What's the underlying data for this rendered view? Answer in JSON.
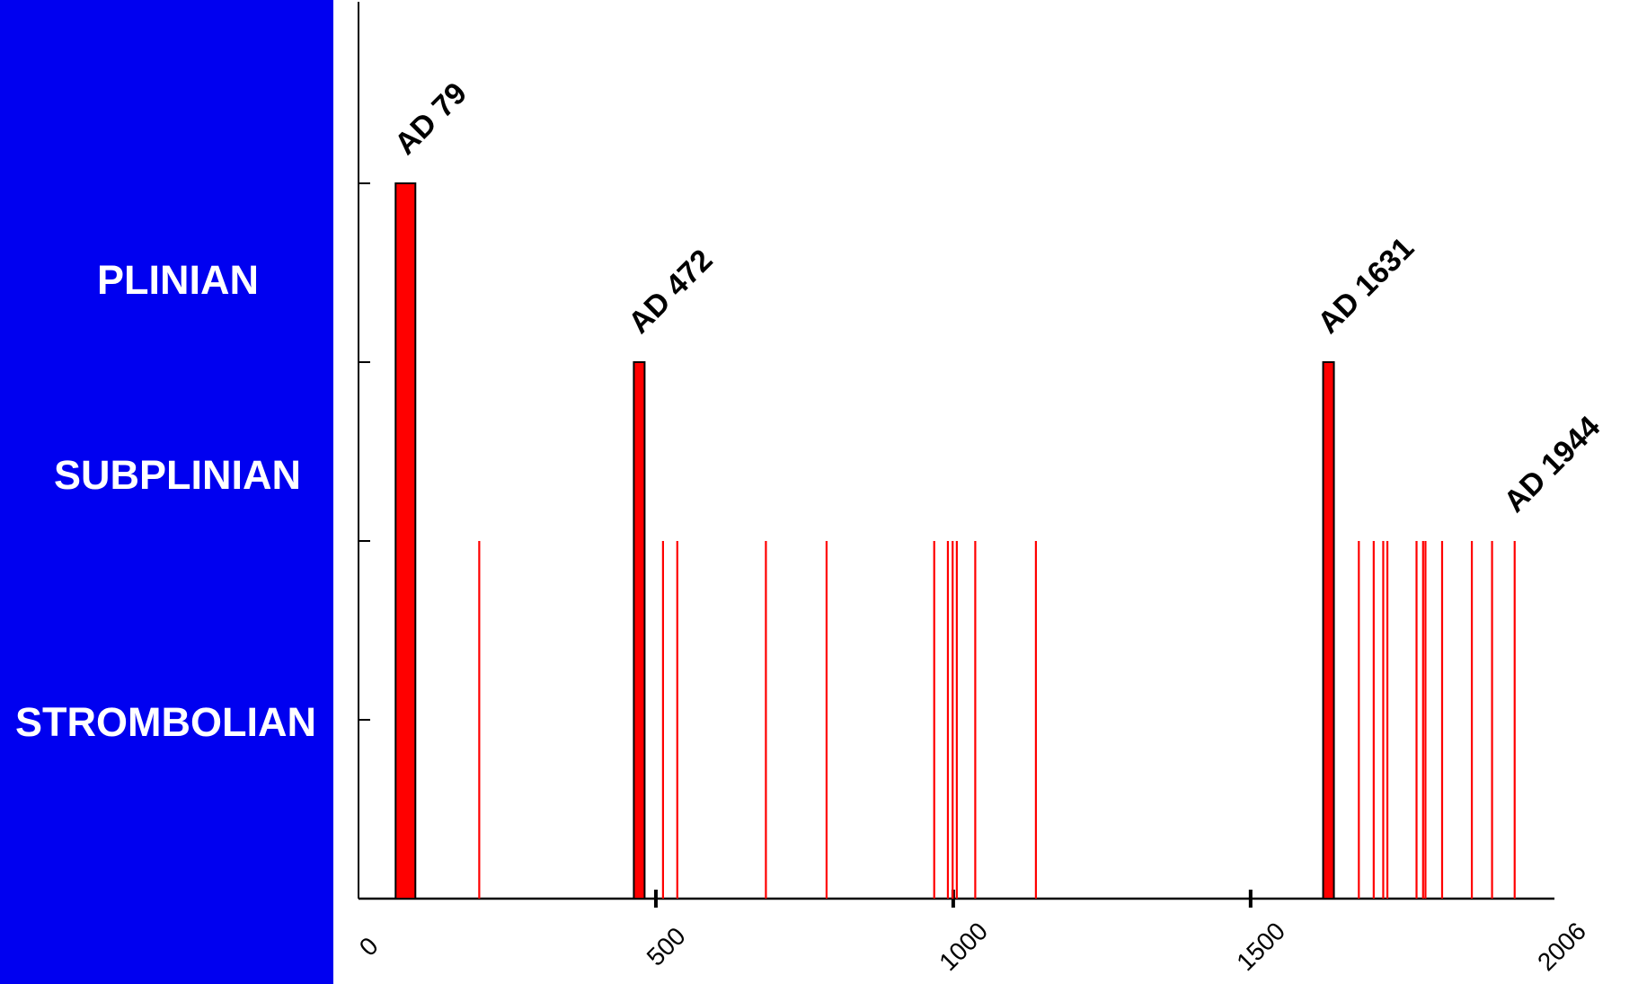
{
  "chart_data": {
    "type": "bar",
    "categories": [
      "STROMBOLIAN",
      "SUBPLINIAN",
      "PLINIAN"
    ],
    "x_ticks": [
      "0",
      "500",
      "1000",
      "1500",
      "2006"
    ],
    "xlim": [
      0,
      2006
    ],
    "annotations": [
      "AD 79",
      "AD 472",
      "AD 1631",
      "AD 1944"
    ],
    "series": [
      {
        "values": [
          {
            "x": 79,
            "y": 4
          },
          {
            "x": 472,
            "y": 3
          },
          {
            "x": 1631,
            "y": 3
          }
        ]
      },
      {
        "values": [
          {
            "x": 203,
            "y": 2
          },
          {
            "x": 512,
            "y": 2
          },
          {
            "x": 536,
            "y": 2
          },
          {
            "x": 685,
            "y": 2
          },
          {
            "x": 787,
            "y": 2
          },
          {
            "x": 968,
            "y": 2
          },
          {
            "x": 991,
            "y": 2
          },
          {
            "x": 999,
            "y": 2
          },
          {
            "x": 1006,
            "y": 2
          },
          {
            "x": 1037,
            "y": 2
          },
          {
            "x": 1139,
            "y": 2
          },
          {
            "x": 1682,
            "y": 2
          },
          {
            "x": 1707,
            "y": 2
          },
          {
            "x": 1723,
            "y": 2
          },
          {
            "x": 1730,
            "y": 2
          },
          {
            "x": 1779,
            "y": 2
          },
          {
            "x": 1790,
            "y": 2
          },
          {
            "x": 1794,
            "y": 2
          },
          {
            "x": 1822,
            "y": 2
          },
          {
            "x": 1872,
            "y": 2
          },
          {
            "x": 1906,
            "y": 2
          },
          {
            "x": 1944,
            "y": 2
          }
        ]
      }
    ],
    "ylim": [
      0,
      5
    ],
    "grid": false,
    "colors": {
      "bar": "#ff0000",
      "outline": "#000000",
      "axis": "#000000",
      "text": "#000000",
      "label": "#ffffff",
      "background": "#0000f0",
      "plot_bg": "#ffffff"
    }
  }
}
